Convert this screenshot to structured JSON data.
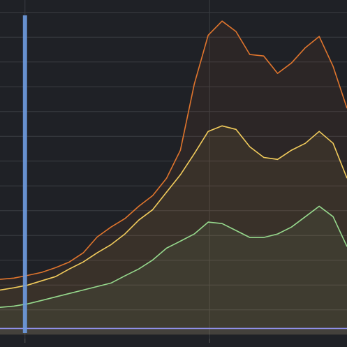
{
  "chart_data": {
    "type": "area",
    "x": [
      0,
      4,
      8,
      12,
      16,
      20,
      24,
      28,
      32,
      36,
      40,
      44,
      48,
      52,
      56,
      60,
      64,
      68,
      72,
      76,
      80,
      84,
      88,
      92,
      96,
      100
    ],
    "series": [
      {
        "name": "orange",
        "color": "#e0752d",
        "values": [
          2.23,
          2.28,
          2.39,
          2.51,
          2.7,
          2.93,
          3.3,
          3.94,
          4.34,
          4.68,
          5.18,
          5.61,
          6.31,
          7.44,
          10.11,
          12.08,
          12.65,
          12.23,
          11.3,
          11.24,
          10.54,
          10.96,
          11.58,
          12.03,
          10.82,
          9.13
        ]
      },
      {
        "name": "yellow",
        "color": "#f2cc5c",
        "values": [
          1.8,
          1.89,
          2.0,
          2.17,
          2.34,
          2.65,
          2.93,
          3.3,
          3.63,
          4.06,
          4.62,
          5.04,
          5.75,
          6.45,
          7.3,
          8.2,
          8.42,
          8.28,
          7.58,
          7.15,
          7.07,
          7.44,
          7.72,
          8.2,
          7.72,
          6.31
        ]
      },
      {
        "name": "green",
        "color": "#96d98d",
        "values": [
          1.1,
          1.15,
          1.24,
          1.38,
          1.52,
          1.66,
          1.8,
          1.94,
          2.08,
          2.37,
          2.65,
          3.01,
          3.49,
          3.77,
          4.06,
          4.54,
          4.48,
          4.2,
          3.92,
          3.92,
          4.06,
          4.34,
          4.76,
          5.18,
          4.76,
          3.55
        ]
      },
      {
        "name": "purple",
        "color": "#8f8fe6",
        "values": [
          0.25,
          0.25,
          0.25,
          0.25,
          0.25,
          0.25,
          0.25,
          0.25,
          0.25,
          0.25,
          0.25,
          0.25,
          0.25,
          0.25,
          0.25,
          0.25,
          0.25,
          0.25,
          0.25,
          0.25,
          0.25,
          0.25,
          0.25,
          0.25,
          0.25,
          0.25
        ]
      }
    ],
    "xlim": [
      0,
      100
    ],
    "ylim": [
      -0.5,
      13.5
    ],
    "xticks": [
      7.2,
      60.4
    ],
    "yticks": [
      1,
      2,
      3,
      4,
      5,
      6,
      7,
      8,
      9,
      10,
      11,
      12,
      13
    ],
    "grid": true,
    "region": {
      "x": [
        6.6,
        7.8
      ],
      "color": "#6e9be0"
    }
  }
}
